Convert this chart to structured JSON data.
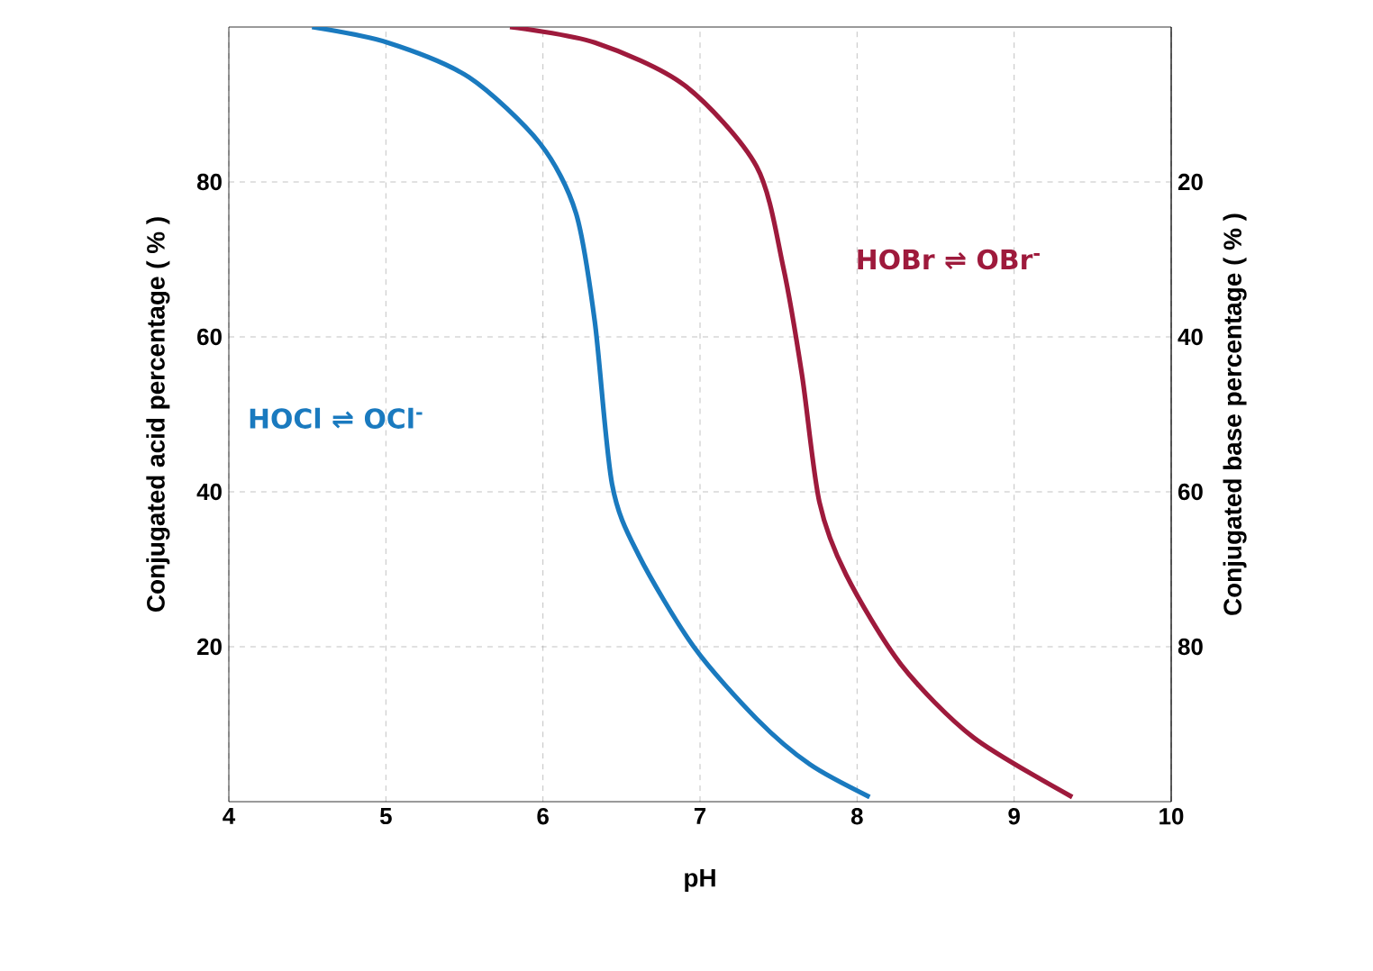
{
  "chart_data": {
    "type": "line",
    "xlabel": "pH",
    "ylabel": "Conjugated acid percentage ( % )",
    "y2label": "Conjugated base percentage ( % )",
    "xlim": [
      4,
      10
    ],
    "xticks": [
      4,
      5,
      6,
      7,
      8,
      9,
      10
    ],
    "ylim": [
      0,
      100
    ],
    "yticks": [
      20,
      40,
      60,
      80
    ],
    "y2lim": [
      100,
      0
    ],
    "y2ticks": [
      20,
      40,
      60,
      80
    ],
    "grid": true,
    "marker": "none",
    "line_style": "solid",
    "series": [
      {
        "name": "HOCl ⇌ OCl$^{-}$",
        "color": "#1a7abf",
        "x": [
          4.53,
          5.01,
          5.53,
          5.98,
          6.21,
          6.33,
          6.44,
          6.61,
          6.96,
          7.36,
          7.7,
          8.08
        ],
        "values": [
          100,
          98,
          93.5,
          85,
          76,
          62,
          41,
          31.8,
          20,
          10.7,
          4.8,
          0.6
        ]
      },
      {
        "name": "HOBr ⇌ OBr$^{-}$",
        "color": "#9e1a3c",
        "x": [
          5.79,
          6.33,
          6.9,
          7.36,
          7.53,
          7.65,
          7.76,
          7.93,
          8.28,
          8.74,
          9.37
        ],
        "values": [
          100,
          98,
          92.5,
          82,
          69,
          55,
          38.7,
          29.3,
          17.7,
          8.3,
          0.6
        ]
      }
    ]
  }
}
